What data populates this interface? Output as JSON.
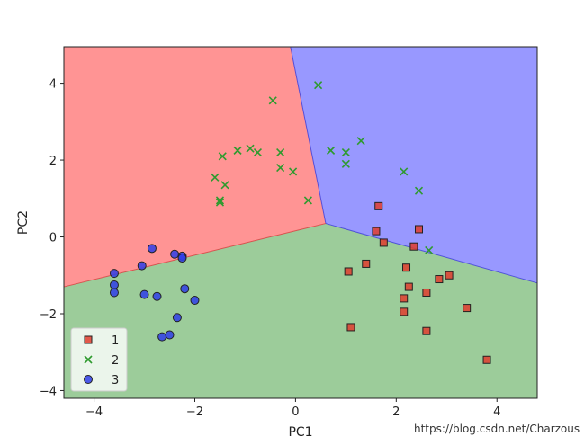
{
  "chart_data": {
    "type": "scatter",
    "xlabel": "PC1",
    "ylabel": "PC2",
    "xlim": [
      -4.6,
      4.8
    ],
    "ylim": [
      -4.2,
      4.95
    ],
    "xticks": [
      -4,
      -2,
      0,
      2,
      4
    ],
    "yticks": [
      -4,
      -2,
      0,
      2,
      4
    ],
    "xtick_labels": [
      "−4",
      "−2",
      "0",
      "2",
      "4"
    ],
    "ytick_labels": [
      "−4",
      "−2",
      "0",
      "2",
      "4"
    ],
    "grid": false,
    "legend_position": "lower-left",
    "decision_regions": {
      "junction": [
        0.6,
        0.35
      ],
      "boundaries": [
        {
          "between": [
            "2",
            "3"
          ],
          "points": [
            [
              0.6,
              0.35
            ],
            [
              -0.1,
              4.95
            ]
          ]
        },
        {
          "between": [
            "2",
            "1"
          ],
          "points": [
            [
              0.6,
              0.35
            ],
            [
              -4.6,
              -1.3
            ]
          ]
        },
        {
          "between": [
            "3",
            "1"
          ],
          "points": [
            [
              0.6,
              0.35
            ],
            [
              4.8,
              -1.2
            ]
          ]
        }
      ],
      "colors": {
        "1": "#9ccc9a",
        "2": "#ff9494",
        "3": "#9898ff"
      }
    },
    "series": [
      {
        "name": "1",
        "marker": "square",
        "color": "#e03c2e",
        "points": [
          [
            1.65,
            0.8
          ],
          [
            1.6,
            0.15
          ],
          [
            1.75,
            -0.15
          ],
          [
            2.35,
            -0.25
          ],
          [
            2.45,
            0.2
          ],
          [
            1.05,
            -0.9
          ],
          [
            1.4,
            -0.7
          ],
          [
            2.2,
            -0.8
          ],
          [
            2.25,
            -1.3
          ],
          [
            2.6,
            -1.45
          ],
          [
            2.85,
            -1.1
          ],
          [
            3.05,
            -1.0
          ],
          [
            2.15,
            -1.6
          ],
          [
            2.15,
            -1.95
          ],
          [
            3.4,
            -1.85
          ],
          [
            1.1,
            -2.35
          ],
          [
            2.6,
            -2.45
          ],
          [
            3.8,
            -3.2
          ]
        ]
      },
      {
        "name": "2",
        "marker": "x",
        "color": "#2e9a2e",
        "points": [
          [
            -0.45,
            3.55
          ],
          [
            0.45,
            3.95
          ],
          [
            1.3,
            2.5
          ],
          [
            0.7,
            2.25
          ],
          [
            1.0,
            2.2
          ],
          [
            1.0,
            1.9
          ],
          [
            -0.9,
            2.3
          ],
          [
            -0.75,
            2.2
          ],
          [
            -1.15,
            2.25
          ],
          [
            -0.3,
            2.2
          ],
          [
            -1.45,
            2.1
          ],
          [
            -0.3,
            1.8
          ],
          [
            -0.05,
            1.7
          ],
          [
            -1.6,
            1.55
          ],
          [
            -1.4,
            1.35
          ],
          [
            -1.5,
            0.9
          ],
          [
            -1.5,
            0.95
          ],
          [
            0.25,
            0.95
          ],
          [
            2.15,
            1.7
          ],
          [
            2.45,
            1.2
          ],
          [
            2.65,
            -0.35
          ]
        ]
      },
      {
        "name": "3",
        "marker": "circle",
        "color": "#2f3de8",
        "points": [
          [
            -3.6,
            -0.95
          ],
          [
            -2.85,
            -0.3
          ],
          [
            -2.4,
            -0.45
          ],
          [
            -2.25,
            -0.5
          ],
          [
            -2.25,
            -0.55
          ],
          [
            -3.05,
            -0.75
          ],
          [
            -3.6,
            -1.25
          ],
          [
            -3.6,
            -1.45
          ],
          [
            -3.0,
            -1.5
          ],
          [
            -2.75,
            -1.55
          ],
          [
            -2.2,
            -1.35
          ],
          [
            -2.0,
            -1.65
          ],
          [
            -2.35,
            -2.1
          ],
          [
            -2.65,
            -2.6
          ],
          [
            -2.5,
            -2.55
          ]
        ]
      }
    ]
  },
  "watermark": "https://blog.csdn.net/Charzous"
}
